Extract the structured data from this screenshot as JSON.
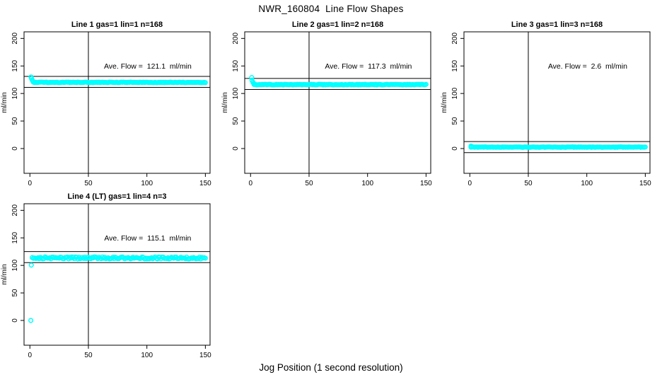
{
  "page_title": "NWR_160804  Line Flow Shapes",
  "x_axis_label": "Jog Position (1 second resolution)",
  "colors": {
    "data_points": "#00ffff",
    "axis": "#000000",
    "background": "#ffffff"
  },
  "chart_data": {
    "type": "scatter",
    "title": "NWR_160804  Line Flow Shapes",
    "xlabel": "Jog Position (1 second resolution)",
    "ylabel": "ml/min",
    "layout": "4 panels: 3 on top row, 1 on bottom-left; grid off",
    "shared": {
      "xlim": [
        -5,
        154
      ],
      "ylim": [
        -45,
        212
      ],
      "x_ticks": [
        0,
        50,
        100,
        150
      ],
      "y_ticks": [
        0,
        50,
        100,
        150,
        200
      ],
      "vline_x": 50,
      "marker": "open-circle",
      "marker_color": "#00ffff"
    },
    "panels": [
      {
        "title": "Line 1 gas=1 lin=1 n=168",
        "n": 168,
        "ave_flow": 121.1,
        "ave_flow_text": "Ave. Flow =  121.1  ml/min",
        "ylabel": "ml/min",
        "hlines": [
          131.1,
          111.1
        ],
        "series": {
          "initial_points": [
            [
              1,
              130
            ],
            [
              1.4,
              127
            ],
            [
              2,
              124.5
            ],
            [
              2.5,
              122.5
            ]
          ],
          "plateau": {
            "x_from": 3,
            "x_to": 150,
            "y": 120.2,
            "jitter": 0.5
          },
          "outliers": []
        }
      },
      {
        "title": "Line 2 gas=1 lin=2 n=168",
        "n": 168,
        "ave_flow": 117.3,
        "ave_flow_text": "Ave. Flow =  117.3  ml/min",
        "ylabel": "ml/min",
        "hlines": [
          127.3,
          107.3
        ],
        "series": {
          "initial_points": [
            [
              1,
              129
            ],
            [
              1.2,
              124
            ],
            [
              2,
              120.5
            ],
            [
              2.6,
              118.5
            ]
          ],
          "plateau": {
            "x_from": 3,
            "x_to": 150,
            "y": 116.2,
            "jitter": 0.5
          },
          "outliers": []
        }
      },
      {
        "title": "Line 3 gas=1 lin=3 n=168",
        "n": 168,
        "ave_flow": 2.6,
        "ave_flow_text": "Ave. Flow =  2.6  ml/min",
        "ylabel": "ml/min",
        "hlines": [
          12.6,
          -7.4
        ],
        "series": {
          "initial_points": [
            [
              1,
              4.5
            ],
            [
              1.6,
              3.6
            ]
          ],
          "plateau": {
            "x_from": 1,
            "x_to": 150,
            "y": 2.6,
            "jitter": 0.5
          },
          "outliers": []
        }
      },
      {
        "title": "Line 4 (LT) gas=1 lin=4 n=3",
        "n": 3,
        "ave_flow": 115.1,
        "ave_flow_text": "Ave. Flow =  115.1  ml/min",
        "ylabel": "ml/min",
        "hlines": [
          125.1,
          105.1
        ],
        "series": {
          "initial_points": [],
          "plateau": {
            "x_from": 2,
            "x_to": 150,
            "y": 113.5,
            "jitter": 1.9
          },
          "outliers": [
            [
              0.8,
              0
            ],
            [
              1.2,
              100.5
            ]
          ]
        }
      }
    ]
  }
}
